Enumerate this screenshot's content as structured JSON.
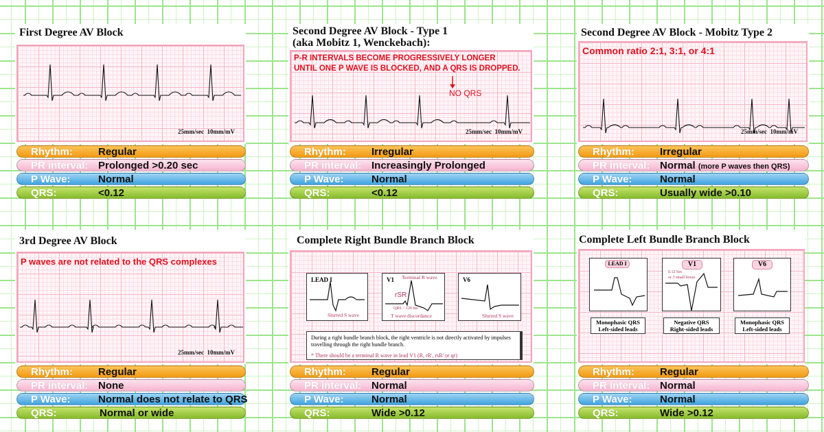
{
  "panels": [
    {
      "title": "First Degree AV Block",
      "speed": "25mm/sec  10mm/mV",
      "rows": {
        "rhythm_label": "Rhythm:",
        "rhythm": "Regular",
        "pr_label": "PR interval:",
        "pr": "Prolonged >0.20 sec",
        "p_label": "P Wave:",
        "p": "Normal",
        "qrs_label": "QRS:",
        "qrs": "<0.12"
      }
    },
    {
      "title": "Second Degree AV Block - Type 1",
      "title2": "(aka Mobitz 1, Wenckebach):",
      "note1": "P-R INTERVALS BECOME PROGRESSIVELY LONGER",
      "note2": "UNTIL ONE P WAVE IS BLOCKED, AND A QRS IS DROPPED.",
      "noqrs": "NO QRS",
      "speed": "25mm/sec  10mm/mV",
      "rows": {
        "rhythm_label": "Rhythm:",
        "rhythm": "Irregular",
        "pr_label": "PR interval:",
        "pr": "Increasingly Prolonged",
        "p_label": "P Wave:",
        "p": "Normal",
        "qrs_label": "QRS:",
        "qrs": "<0.12"
      }
    },
    {
      "title": "Second Degree AV Block - Mobitz Type 2",
      "note1": "Common ratio 2:1, 3:1, or 4:1",
      "speed": "25mm/sec  10mm/mV",
      "rows": {
        "rhythm_label": "Rhythm:",
        "rhythm": "Irregular",
        "pr_label": "PR interval:",
        "pr": "Normal",
        "pr_extra": "(more P waves then QRS)",
        "p_label": "P Wave:",
        "p": "Normal",
        "qrs_label": "QRS:",
        "qrs": "Usually wide >0.10"
      }
    },
    {
      "title": "3rd Degree AV Block",
      "note1": "P waves are not related to the QRS complexes",
      "speed": "25mm/sec  10mm/mV",
      "rows": {
        "rhythm_label": "Rhythm:",
        "rhythm": "Regular",
        "pr_label": "PR interval:",
        "pr": "None",
        "p_label": "P Wave:",
        "p": "Normal does not relate to QRS",
        "qrs_label": "QRS:",
        "qrs": "Normal or wide"
      }
    },
    {
      "title": "Complete Right Bundle Branch Block",
      "leads": [
        {
          "name": "LEAD I",
          "caption": "Slurred S wave"
        },
        {
          "name": "V1",
          "top": "Terminal R wave",
          "rsr": "rSR",
          "qrs": "QRS > 120 ms",
          "caption": "T wave discordance"
        },
        {
          "name": "V6",
          "caption": "Slurred S wave"
        }
      ],
      "desc": "During a right bundle branch block, the right ventricle is not directly activated by impulses travelling through the right bundle branch.",
      "star": "* There should be a terminal R wave in lead V1 (R, rR', rsR' or qr)",
      "rows": {
        "rhythm_label": "Rhythm:",
        "rhythm": "Regular",
        "pr_label": "PR interval:",
        "pr": "Normal",
        "p_label": "P Wave:",
        "p": "Normal",
        "qrs_label": "QRS:",
        "qrs": "Wide >0.12"
      }
    },
    {
      "title": "Complete Left Bundle Branch Block",
      "leads": [
        {
          "name": "LEAD I",
          "cap1": "Monophasic QRS",
          "cap2": "Left-sided leads"
        },
        {
          "name": "V1",
          "note1": "0.12 Sec",
          "note2": "or 3 small boxes",
          "cap1": "Negative QRS",
          "cap2": "Right-sided leads"
        },
        {
          "name": "V6",
          "cap1": "Monophasic QRS",
          "cap2": "Left-sided leads"
        }
      ],
      "rows": {
        "rhythm_label": "Rhythm:",
        "rhythm": "Regular",
        "pr_label": "PR interval:",
        "pr": "Normal",
        "p_label": "P Wave:",
        "p": "Normal",
        "qrs_label": "QRS:",
        "qrs": "Wide >0.12"
      }
    }
  ],
  "colors": {
    "rhythm": "#f39a12",
    "pr": "#f6b4cf",
    "p_wave": "#3fa3df",
    "qrs": "#86bb2c",
    "alert": "#e0101e"
  }
}
